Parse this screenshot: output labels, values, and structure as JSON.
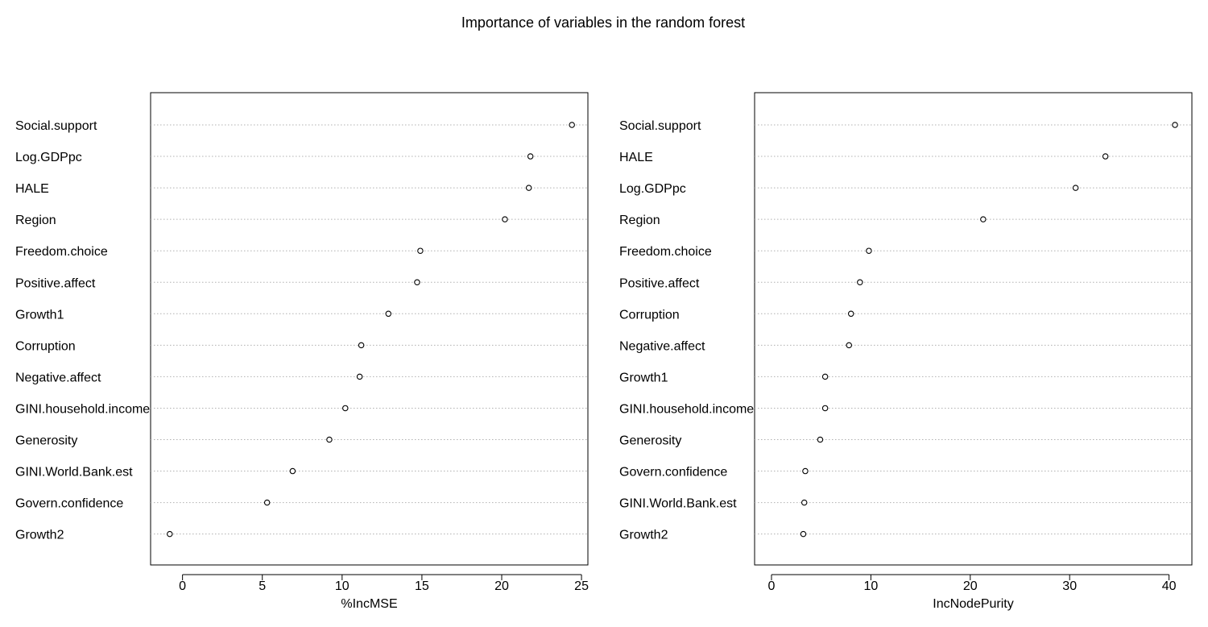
{
  "title": "Importance of variables in the random forest",
  "chart_data": [
    {
      "type": "scatter",
      "subtype": "dotchart",
      "xlabel": "%IncMSE",
      "xlim": [
        -2,
        25.4
      ],
      "xticks": [
        0,
        5,
        10,
        15,
        20,
        25
      ],
      "grid": "horizontal dotted",
      "categories": [
        "Social.support",
        "Log.GDPpc",
        "HALE",
        "Region",
        "Freedom.choice",
        "Positive.affect",
        "Growth1",
        "Corruption",
        "Negative.affect",
        "GINI.household.income",
        "Generosity",
        "GINI.World.Bank.est",
        "Govern.confidence",
        "Growth2"
      ],
      "values": [
        24.4,
        21.8,
        21.7,
        20.2,
        14.9,
        14.7,
        12.9,
        11.2,
        11.1,
        10.2,
        9.2,
        6.9,
        5.3,
        -0.8
      ]
    },
    {
      "type": "scatter",
      "subtype": "dotchart",
      "xlabel": "IncNodePurity",
      "xlim": [
        -1.7,
        42.3
      ],
      "xticks": [
        0,
        10,
        20,
        30,
        40
      ],
      "grid": "horizontal dotted",
      "categories": [
        "Social.support",
        "HALE",
        "Log.GDPpc",
        "Region",
        "Freedom.choice",
        "Positive.affect",
        "Corruption",
        "Negative.affect",
        "Growth1",
        "GINI.household.income",
        "Generosity",
        "Govern.confidence",
        "GINI.World.Bank.est",
        "Growth2"
      ],
      "values": [
        40.6,
        33.6,
        30.6,
        21.3,
        9.8,
        8.9,
        8.0,
        7.8,
        5.4,
        5.4,
        4.9,
        3.4,
        3.3,
        3.2
      ]
    }
  ]
}
